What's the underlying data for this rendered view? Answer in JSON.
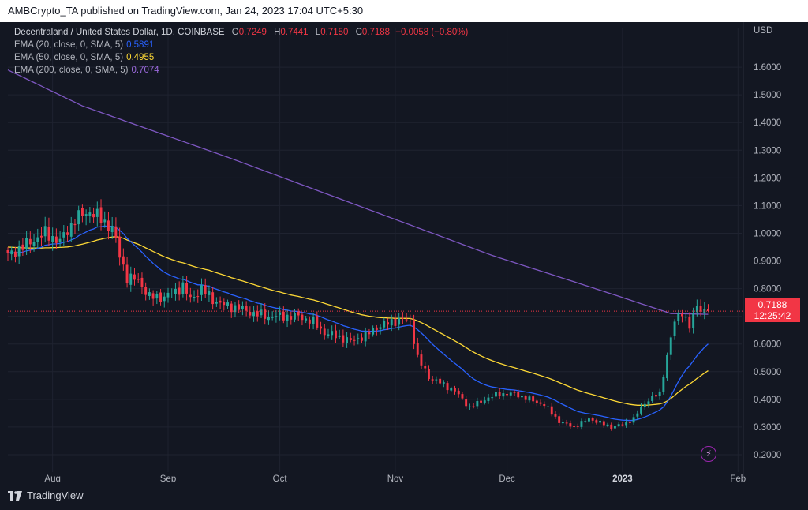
{
  "header": {
    "publisher": "AMBCrypto_TA published on TradingView.com, Jan 24, 2023 17:04 UTC+5:30"
  },
  "legend": {
    "symbol": "Decentraland / United States Dollar, 1D, COINBASE",
    "open_key": "O",
    "open": "0.7249",
    "high_key": "H",
    "high": "0.7441",
    "low_key": "L",
    "low": "0.7150",
    "close_key": "C",
    "close": "0.7188",
    "change": "−0.0058 (−0.80%)",
    "ema20_label": "EMA (20, close, 0, SMA, 5)",
    "ema20_value": "0.5891",
    "ema50_label": "EMA (50, close, 0, SMA, 5)",
    "ema50_value": "0.4955",
    "ema200_label": "EMA (200, close, 0, SMA, 5)",
    "ema200_value": "0.7074"
  },
  "price_tag": {
    "price": "0.7188",
    "countdown": "12:25:42"
  },
  "footer": {
    "brand": "TradingView"
  },
  "icons": {
    "flash": "lightning-icon"
  },
  "colors": {
    "up": "#26a69a",
    "down": "#f23645",
    "ema20": "#2962ff",
    "ema50": "#fdd835",
    "ema200": "#7e57c2",
    "grid": "#1f2330"
  },
  "chart_data": {
    "type": "candlestick",
    "title": "Decentraland / United States Dollar, 1D, COINBASE",
    "ylabel": "USD",
    "ylim": [
      0.16,
      1.74
    ],
    "y_ticks": [
      "1.6000",
      "1.5000",
      "1.4000",
      "1.3000",
      "1.2000",
      "1.1000",
      "1.0000",
      "0.9000",
      "0.8000",
      "0.7000",
      "0.6000",
      "0.5000",
      "0.4000",
      "0.3000",
      "0.2000"
    ],
    "x_ticks": [
      {
        "label": "Aug",
        "day": 12
      },
      {
        "label": "Sep",
        "day": 43
      },
      {
        "label": "Oct",
        "day": 73
      },
      {
        "label": "Nov",
        "day": 104
      },
      {
        "label": "Dec",
        "day": 134
      },
      {
        "label": "2023",
        "day": 165
      },
      {
        "label": "Feb",
        "day": 196
      }
    ],
    "x_start_day": 0,
    "x_end_day": 197,
    "last_price": 0.7188,
    "close_anchors": [
      [
        0,
        0.92
      ],
      [
        5,
        0.96
      ],
      [
        10,
        1.0
      ],
      [
        14,
        0.97
      ],
      [
        18,
        1.05
      ],
      [
        22,
        1.08
      ],
      [
        26,
        1.04
      ],
      [
        28,
        1.02
      ],
      [
        30,
        0.92
      ],
      [
        32,
        0.84
      ],
      [
        35,
        0.83
      ],
      [
        38,
        0.77
      ],
      [
        42,
        0.77
      ],
      [
        45,
        0.79
      ],
      [
        47,
        0.81
      ],
      [
        49,
        0.76
      ],
      [
        52,
        0.8
      ],
      [
        55,
        0.76
      ],
      [
        58,
        0.74
      ],
      [
        62,
        0.73
      ],
      [
        66,
        0.71
      ],
      [
        70,
        0.7
      ],
      [
        74,
        0.7
      ],
      [
        78,
        0.7
      ],
      [
        82,
        0.68
      ],
      [
        85,
        0.64
      ],
      [
        88,
        0.63
      ],
      [
        92,
        0.61
      ],
      [
        96,
        0.63
      ],
      [
        99,
        0.66
      ],
      [
        103,
        0.68
      ],
      [
        106,
        0.69
      ],
      [
        108,
        0.68
      ],
      [
        110,
        0.55
      ],
      [
        113,
        0.48
      ],
      [
        116,
        0.46
      ],
      [
        120,
        0.43
      ],
      [
        124,
        0.37
      ],
      [
        128,
        0.4
      ],
      [
        132,
        0.42
      ],
      [
        136,
        0.42
      ],
      [
        140,
        0.4
      ],
      [
        144,
        0.38
      ],
      [
        148,
        0.32
      ],
      [
        152,
        0.3
      ],
      [
        156,
        0.33
      ],
      [
        160,
        0.31
      ],
      [
        162,
        0.3
      ],
      [
        165,
        0.31
      ],
      [
        168,
        0.33
      ],
      [
        170,
        0.37
      ],
      [
        172,
        0.4
      ],
      [
        175,
        0.42
      ],
      [
        177,
        0.56
      ],
      [
        179,
        0.68
      ],
      [
        181,
        0.72
      ],
      [
        183,
        0.66
      ],
      [
        185,
        0.74
      ],
      [
        187,
        0.72
      ],
      [
        188,
        0.7188
      ]
    ],
    "ema200_anchors": [
      [
        0,
        1.59
      ],
      [
        20,
        1.46
      ],
      [
        60,
        1.27
      ],
      [
        100,
        1.07
      ],
      [
        130,
        0.92
      ],
      [
        160,
        0.79
      ],
      [
        178,
        0.71
      ],
      [
        188,
        0.7074
      ]
    ],
    "series": [
      {
        "name": "EMA (20, close, 0, SMA, 5)",
        "last": 0.5891
      },
      {
        "name": "EMA (50, close, 0, SMA, 5)",
        "last": 0.4955
      },
      {
        "name": "EMA (200, close, 0, SMA, 5)",
        "last": 0.7074
      }
    ]
  }
}
